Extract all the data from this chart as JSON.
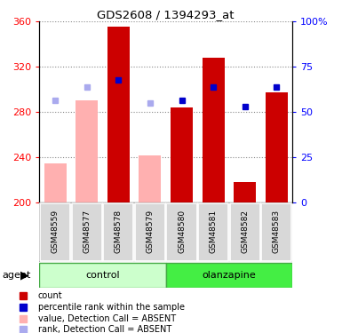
{
  "title": "GDS2608 / 1394293_at",
  "samples": [
    "GSM48559",
    "GSM48577",
    "GSM48578",
    "GSM48579",
    "GSM48580",
    "GSM48581",
    "GSM48582",
    "GSM48583"
  ],
  "bar_values": [
    235,
    290,
    355,
    242,
    284,
    328,
    218,
    297
  ],
  "bar_absent": [
    true,
    true,
    false,
    true,
    false,
    false,
    false,
    false
  ],
  "rank_values": [
    290,
    302,
    308,
    288,
    290,
    302,
    285,
    302
  ],
  "rank_absent": [
    true,
    true,
    false,
    true,
    false,
    false,
    false,
    false
  ],
  "ylim_left": [
    200,
    360
  ],
  "ylim_right": [
    0,
    100
  ],
  "yticks_left": [
    200,
    240,
    280,
    320,
    360
  ],
  "yticks_right": [
    0,
    25,
    50,
    75,
    100
  ],
  "ytick_labels_right": [
    "0",
    "25",
    "50",
    "75",
    "100%"
  ],
  "groups": [
    {
      "label": "control",
      "indices": [
        0,
        1,
        2,
        3
      ]
    },
    {
      "label": "olanzapine",
      "indices": [
        4,
        5,
        6,
        7
      ]
    }
  ],
  "group_colors": [
    "#c8f5c8",
    "#44dd44"
  ],
  "color_red": "#cc0000",
  "color_pink": "#ffb0b0",
  "color_blue": "#0000cc",
  "color_blue_light": "#aaaaee",
  "bar_width": 0.7,
  "agent_label": "agent",
  "legend_items": [
    {
      "label": "count",
      "color": "#cc0000"
    },
    {
      "label": "percentile rank within the sample",
      "color": "#0000cc"
    },
    {
      "label": "value, Detection Call = ABSENT",
      "color": "#ffb0b0"
    },
    {
      "label": "rank, Detection Call = ABSENT",
      "color": "#aaaaee"
    }
  ]
}
